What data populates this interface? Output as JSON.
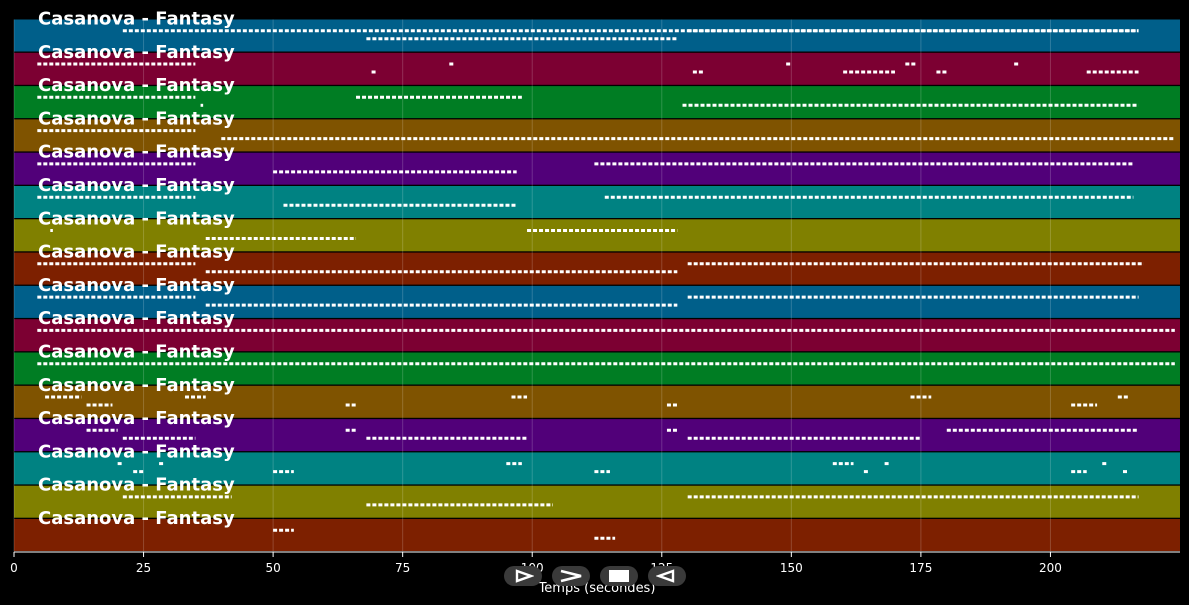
{
  "tracks": [
    {
      "title": "Casanova - Fantasy",
      "color": "#005f8a"
    },
    {
      "title": "Casanova - Fantasy",
      "color": "#7c0032"
    },
    {
      "title": "Casanova - Fantasy",
      "color": "#007d23"
    },
    {
      "title": "Casanova - Fantasy",
      "color": "#7f5300"
    },
    {
      "title": "Casanova - Fantasy",
      "color": "#510079"
    },
    {
      "title": "Casanova - Fantasy",
      "color": "#008282"
    },
    {
      "title": "Casanova - Fantasy",
      "color": "#808000"
    },
    {
      "title": "Casanova - Fantasy",
      "color": "#7d2000"
    },
    {
      "title": "Casanova - Fantasy",
      "color": "#005f8a"
    },
    {
      "title": "Casanova - Fantasy",
      "color": "#7c0032"
    },
    {
      "title": "Casanova - Fantasy",
      "color": "#007d23"
    },
    {
      "title": "Casanova - Fantasy",
      "color": "#7f5300"
    },
    {
      "title": "Casanova - Fantasy",
      "color": "#510079"
    },
    {
      "title": "Casanova - Fantasy",
      "color": "#008282"
    },
    {
      "title": "Casanova - Fantasy",
      "color": "#808000"
    },
    {
      "title": "Casanova - Fantasy",
      "color": "#7d2000"
    }
  ],
  "x_axis": {
    "label": "Temps (secondes)",
    "ticks": [
      "0",
      "25",
      "50",
      "75",
      "100",
      "125",
      "150",
      "175",
      "200"
    ],
    "tick_values": [
      0,
      25,
      50,
      75,
      100,
      125,
      150,
      175,
      200
    ],
    "range": [
      0,
      225
    ]
  },
  "note_segments": [
    [
      [
        21,
        217
      ],
      [
        68,
        128
      ],
      [
        130,
        217
      ]
    ],
    [
      [
        4.5,
        35
      ],
      [
        69,
        70
      ],
      [
        84,
        85
      ],
      [
        131,
        133
      ],
      [
        149,
        150
      ],
      [
        160,
        170
      ],
      [
        172,
        174
      ],
      [
        178,
        180
      ],
      [
        193,
        194
      ],
      [
        207,
        217
      ]
    ],
    [
      [
        4.5,
        35
      ],
      [
        36,
        36.5
      ],
      [
        66,
        98
      ],
      [
        129,
        217
      ]
    ],
    [
      [
        4.5,
        35
      ],
      [
        40,
        224
      ]
    ],
    [
      [
        4.5,
        35
      ],
      [
        50,
        97
      ],
      [
        112,
        216
      ]
    ],
    [
      [
        4.5,
        35
      ],
      [
        52,
        97
      ],
      [
        114,
        216
      ]
    ],
    [
      [
        7,
        7.5
      ],
      [
        37,
        66
      ],
      [
        99,
        128
      ]
    ],
    [
      [
        4.5,
        35
      ],
      [
        37,
        128
      ],
      [
        130,
        218
      ]
    ],
    [
      [
        4.5,
        35
      ],
      [
        37,
        128
      ],
      [
        130,
        217
      ]
    ],
    [
      [
        4.5,
        224
      ]
    ],
    [
      [
        4.5,
        224
      ]
    ],
    [
      [
        6,
        13
      ],
      [
        14,
        19
      ],
      [
        33,
        37
      ],
      [
        64,
        66
      ],
      [
        96,
        99
      ],
      [
        126,
        128
      ],
      [
        173,
        177
      ],
      [
        204,
        209
      ],
      [
        213,
        215
      ]
    ],
    [
      [
        14,
        20
      ],
      [
        21,
        35
      ],
      [
        64,
        66
      ],
      [
        68,
        99
      ],
      [
        126,
        128
      ],
      [
        130,
        175
      ],
      [
        180,
        217
      ]
    ],
    [
      [
        20,
        21
      ],
      [
        23,
        25
      ],
      [
        28,
        29
      ],
      [
        50,
        54
      ],
      [
        95,
        98
      ],
      [
        112,
        115
      ],
      [
        158,
        162
      ],
      [
        164,
        165
      ],
      [
        168,
        169
      ],
      [
        204,
        207
      ],
      [
        210,
        211
      ],
      [
        214,
        215
      ]
    ],
    [
      [
        21,
        42
      ],
      [
        68,
        104
      ],
      [
        130,
        217
      ]
    ],
    [
      [
        50,
        54
      ],
      [
        112,
        116
      ]
    ]
  ],
  "controls": [
    {
      "name": "play-button",
      "icon": "play-icon"
    },
    {
      "name": "fast-forward-button",
      "icon": "fast-forward-icon"
    },
    {
      "name": "stop-button",
      "icon": "stop-icon"
    },
    {
      "name": "rewind-button",
      "icon": "rewind-icon"
    }
  ]
}
